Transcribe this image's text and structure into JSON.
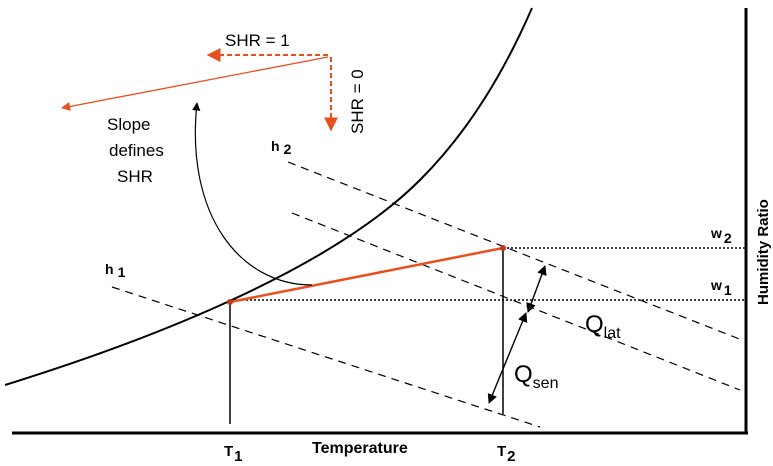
{
  "axes": {
    "x_label": "Temperature",
    "y_label": "Humidity Ratio"
  },
  "enthalpy_lines": {
    "h1": {
      "main": "h",
      "sub": "1"
    },
    "h2": {
      "main": "h",
      "sub": "2"
    }
  },
  "humidity_levels": {
    "w1": {
      "main": "w",
      "sub": "1"
    },
    "w2": {
      "main": "w",
      "sub": "2"
    }
  },
  "temperatures": {
    "T1": {
      "main": "T",
      "sub": "1"
    },
    "T2": {
      "main": "T",
      "sub": "2"
    }
  },
  "shr": {
    "horizontal_label": "SHR = 1",
    "vertical_label": "SHR = 0",
    "slope_line1": "Slope",
    "slope_line2": "defines",
    "slope_line3": "SHR"
  },
  "heat_loads": {
    "latent": {
      "main": "Q",
      "sub": "lat"
    },
    "sensible": {
      "main": "Q",
      "sub": "sen"
    }
  },
  "colors": {
    "process_line": "#e8501e",
    "lines": "#000000"
  }
}
